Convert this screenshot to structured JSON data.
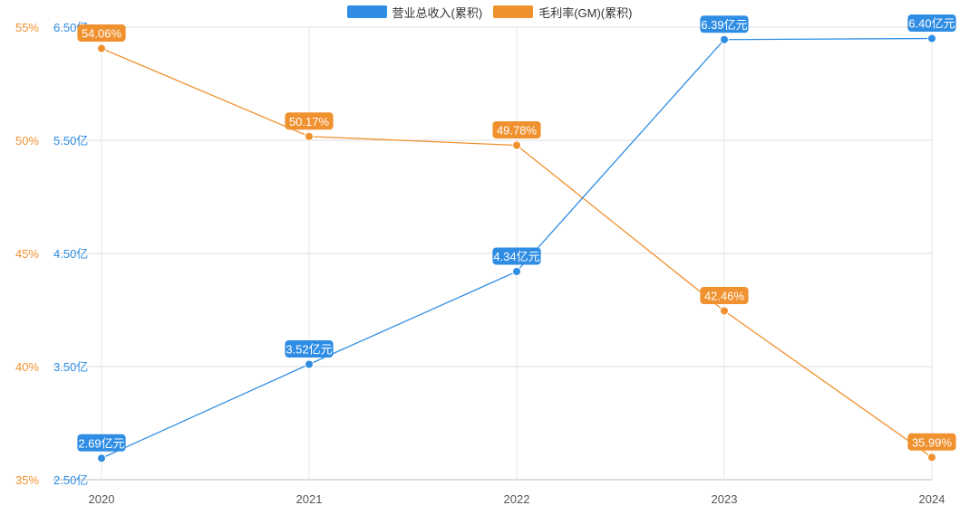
{
  "chart_data": {
    "type": "line",
    "categories": [
      "2020",
      "2021",
      "2022",
      "2023",
      "2024"
    ],
    "series": [
      {
        "name": "营业总收入(累积)",
        "axis": "left-inner",
        "color": "#2f8de4",
        "values": [
          2.69,
          3.52,
          4.34,
          6.39,
          6.4
        ],
        "labels": [
          "2.69亿元",
          "3.52亿元",
          "4.34亿元",
          "6.39亿元",
          "6.40亿元"
        ]
      },
      {
        "name": "毛利率(GM)(累积)",
        "axis": "left-outer",
        "color": "#f0912f",
        "values": [
          54.06,
          50.17,
          49.78,
          42.46,
          35.99
        ],
        "labels": [
          "54.06%",
          "50.17%",
          "49.78%",
          "42.46%",
          "35.99%"
        ]
      }
    ],
    "y_revenue": {
      "ylim": [
        2.5,
        6.5
      ],
      "ticks": [
        "2.50亿",
        "3.50亿",
        "4.50亿",
        "5.50亿",
        "6.50亿"
      ]
    },
    "y_margin": {
      "ylim": [
        35,
        55
      ],
      "ticks": [
        "35%",
        "40%",
        "45%",
        "50%",
        "55%"
      ]
    },
    "grid": true,
    "legend_position": "top-center"
  }
}
